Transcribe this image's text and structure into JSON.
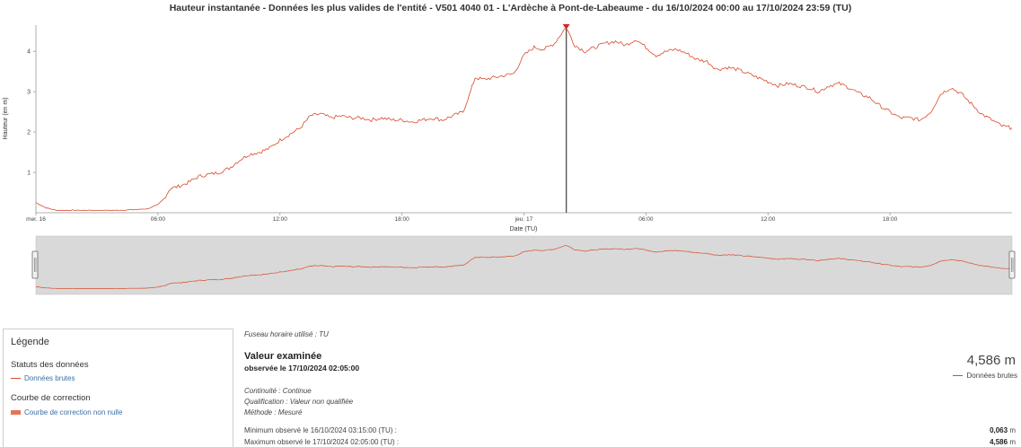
{
  "chart_data": {
    "type": "line",
    "title": "Hauteur instantanée - Données les plus valides de l'entité - V501 4040 01 - L'Ardèche à Pont-de-Labeaume - du 16/10/2024 00:00 au 17/10/2024 23:59 (TU)",
    "xlabel": "Date (TU)",
    "ylabel": "Hauteur (en m)",
    "xlim": [
      0,
      48
    ],
    "ylim": [
      0,
      4.65
    ],
    "x_ticks": [
      {
        "x": 0,
        "label": "mer. 16"
      },
      {
        "x": 6,
        "label": "06:00"
      },
      {
        "x": 12,
        "label": "12:00"
      },
      {
        "x": 18,
        "label": "18:00"
      },
      {
        "x": 24,
        "label": "jeu. 17"
      },
      {
        "x": 30,
        "label": "06:00"
      },
      {
        "x": 36,
        "label": "12:00"
      },
      {
        "x": 42,
        "label": "18:00"
      }
    ],
    "y_ticks": [
      1,
      2,
      3,
      4
    ],
    "marker_x": 26.08,
    "series": [
      {
        "name": "Données brutes",
        "color": "#d94a2b",
        "x": [
          0,
          0.5,
          1,
          2,
          3,
          4,
          5,
          5.5,
          6,
          6.3,
          6.6,
          7,
          7.5,
          8,
          8.5,
          9,
          9.5,
          10,
          10.5,
          11,
          11.5,
          12,
          12.5,
          13,
          13.5,
          14,
          14.5,
          15,
          15.5,
          16,
          16.5,
          17,
          17.5,
          18,
          18.5,
          19,
          19.5,
          20,
          20.5,
          21,
          21.3,
          21.6,
          22,
          22.5,
          23,
          23.5,
          24,
          24.5,
          25,
          25.5,
          26,
          26.08,
          26.5,
          27,
          27.5,
          28,
          28.5,
          29,
          29.5,
          30,
          30.5,
          31,
          31.5,
          32,
          32.5,
          33,
          33.5,
          34,
          34.5,
          35,
          35.5,
          36,
          36.5,
          37,
          37.5,
          38,
          38.5,
          39,
          39.5,
          40,
          40.5,
          41,
          41.5,
          42,
          42.5,
          43,
          43.5,
          44,
          44.5,
          45,
          45.5,
          46,
          46.5,
          47,
          47.5,
          48
        ],
        "values": [
          0.25,
          0.12,
          0.06,
          0.06,
          0.06,
          0.06,
          0.08,
          0.1,
          0.2,
          0.35,
          0.6,
          0.65,
          0.75,
          0.9,
          0.95,
          1.0,
          1.1,
          1.3,
          1.45,
          1.5,
          1.6,
          1.8,
          1.95,
          2.1,
          2.4,
          2.45,
          2.35,
          2.4,
          2.35,
          2.35,
          2.3,
          2.35,
          2.3,
          2.3,
          2.25,
          2.3,
          2.35,
          2.3,
          2.4,
          2.5,
          2.9,
          3.35,
          3.3,
          3.35,
          3.4,
          3.45,
          3.9,
          4.1,
          4.05,
          4.2,
          4.55,
          4.586,
          4.15,
          4.0,
          4.1,
          4.2,
          4.25,
          4.15,
          4.3,
          4.1,
          3.9,
          4.0,
          4.05,
          3.95,
          3.8,
          3.75,
          3.55,
          3.6,
          3.55,
          3.45,
          3.35,
          3.25,
          3.15,
          3.2,
          3.15,
          3.1,
          3.0,
          3.15,
          3.2,
          3.1,
          2.95,
          2.85,
          2.65,
          2.5,
          2.35,
          2.35,
          2.3,
          2.5,
          2.95,
          3.1,
          2.95,
          2.7,
          2.45,
          2.3,
          2.15,
          2.1
        ]
      }
    ]
  },
  "legend": {
    "title": "Légende",
    "status_heading": "Statuts des données",
    "status_item": "Données brutes",
    "correction_heading": "Courbe de correction",
    "correction_item": "Courbe de correction non nulle"
  },
  "info": {
    "timezone": "Fuseau horaire utilisé : TU",
    "examined_title": "Valeur examinée",
    "examined_subtitle": "observée le 17/10/2024 02:05:00",
    "examined_value": "4,586 m",
    "examined_series": "Données brutes",
    "continuity": "Continuité : Continue",
    "qualification": "Qualification : Valeur non qualifiée",
    "method": "Méthode : Mesuré",
    "min_label": "Minimum observé le 16/10/2024 03:15:00 (TU) :",
    "min_value": "0,063",
    "max_label": "Maximum observé le 17/10/2024 02:05:00 (TU) :",
    "max_value": "4,586",
    "unit": "m"
  }
}
